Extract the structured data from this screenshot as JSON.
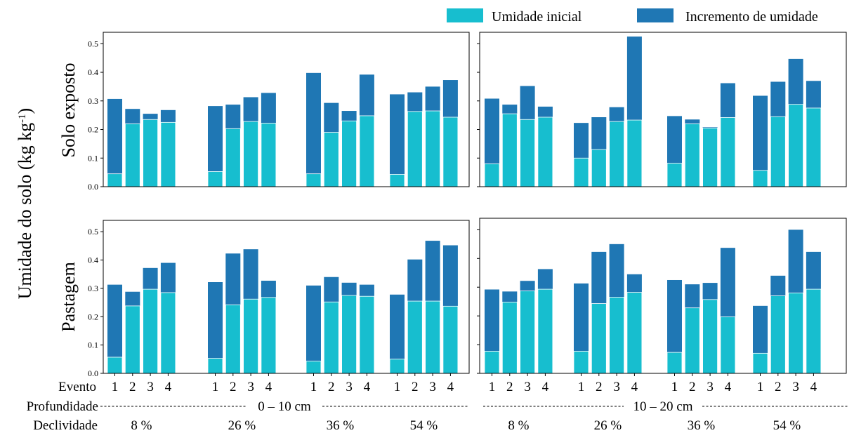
{
  "legend": {
    "initial_label": "Umidade inicial",
    "increment_label": "Incremento de umidade",
    "initial_color": "#17becf",
    "increment_color": "#1f77b4",
    "placement": "top-right"
  },
  "y_axis_title": "Umidade do solo (kg kg",
  "y_axis_title_sup": "-1",
  "y_axis_title_end": ")",
  "row_labels": [
    "Solo exposto",
    "Pastagem"
  ],
  "bottom_labels": {
    "evento": "Evento",
    "profundidade": "Profundidade",
    "declividade": "Declividade"
  },
  "depth_labels": [
    "0 – 10 cm",
    "10 – 20 cm"
  ],
  "slope_labels": [
    "8 %",
    "26 %",
    "36 %",
    "54 %"
  ],
  "event_labels": [
    "1",
    "2",
    "3",
    "4"
  ],
  "chart_data": {
    "type": "bar",
    "stacked": true,
    "ylim": [
      0,
      0.54
    ],
    "yticks": [
      0.0,
      0.1,
      0.2,
      0.3,
      0.4,
      0.5
    ],
    "ytick_labels": [
      "0.0",
      "0.1",
      "0.2",
      "0.3",
      "0.4",
      "0.5"
    ],
    "grid": false,
    "series_names": [
      "Umidade inicial",
      "Incremento de umidade"
    ],
    "panels": [
      {
        "row": "Solo exposto",
        "depth": "0 – 10 cm",
        "groups": [
          {
            "slope": "8 %",
            "initial": [
              0.045,
              0.22,
              0.235,
              0.225
            ],
            "total": [
              0.307,
              0.272,
              0.255,
              0.268
            ]
          },
          {
            "slope": "26 %",
            "initial": [
              0.053,
              0.203,
              0.228,
              0.222
            ],
            "total": [
              0.282,
              0.287,
              0.313,
              0.328
            ]
          },
          {
            "slope": "36 %",
            "initial": [
              0.045,
              0.19,
              0.23,
              0.248
            ],
            "total": [
              0.398,
              0.293,
              0.265,
              0.392
            ]
          },
          {
            "slope": "54 %",
            "initial": [
              0.043,
              0.263,
              0.265,
              0.243
            ],
            "total": [
              0.323,
              0.33,
              0.35,
              0.373
            ]
          }
        ]
      },
      {
        "row": "Solo exposto",
        "depth": "10 – 20 cm",
        "groups": [
          {
            "slope": "8 %",
            "initial": [
              0.08,
              0.255,
              0.235,
              0.243
            ],
            "total": [
              0.308,
              0.287,
              0.352,
              0.28
            ]
          },
          {
            "slope": "26 %",
            "initial": [
              0.1,
              0.13,
              0.228,
              0.233
            ],
            "total": [
              0.223,
              0.243,
              0.278,
              0.525
            ]
          },
          {
            "slope": "36 %",
            "initial": [
              0.082,
              0.22,
              0.205,
              0.242
            ],
            "total": [
              0.247,
              0.235,
              0.208,
              0.362
            ]
          },
          {
            "slope": "54 %",
            "initial": [
              0.057,
              0.245,
              0.288,
              0.275
            ],
            "total": [
              0.318,
              0.367,
              0.447,
              0.37
            ]
          }
        ]
      },
      {
        "row": "Pastagem",
        "depth": "0 – 10 cm",
        "groups": [
          {
            "slope": "8 %",
            "initial": [
              0.057,
              0.238,
              0.297,
              0.285
            ],
            "total": [
              0.313,
              0.288,
              0.372,
              0.39
            ]
          },
          {
            "slope": "26 %",
            "initial": [
              0.053,
              0.242,
              0.262,
              0.268
            ],
            "total": [
              0.322,
              0.423,
              0.438,
              0.327
            ]
          },
          {
            "slope": "36 %",
            "initial": [
              0.043,
              0.252,
              0.275,
              0.272
            ],
            "total": [
              0.31,
              0.34,
              0.32,
              0.313
            ]
          },
          {
            "slope": "54 %",
            "initial": [
              0.05,
              0.255,
              0.255,
              0.237
            ],
            "total": [
              0.278,
              0.402,
              0.468,
              0.452
            ]
          }
        ]
      },
      {
        "row": "Pastagem",
        "depth": "10 – 20 cm",
        "groups": [
          {
            "slope": "8 %",
            "initial": [
              0.077,
              0.248,
              0.287,
              0.293
            ],
            "total": [
              0.292,
              0.285,
              0.322,
              0.363
            ]
          },
          {
            "slope": "26 %",
            "initial": [
              0.077,
              0.243,
              0.265,
              0.282
            ],
            "total": [
              0.313,
              0.423,
              0.45,
              0.345
            ]
          },
          {
            "slope": "36 %",
            "initial": [
              0.073,
              0.228,
              0.257,
              0.197
            ],
            "total": [
              0.325,
              0.31,
              0.315,
              0.437
            ]
          },
          {
            "slope": "54 %",
            "initial": [
              0.07,
              0.27,
              0.28,
              0.293
            ],
            "total": [
              0.235,
              0.34,
              0.5,
              0.423
            ]
          }
        ]
      }
    ]
  }
}
